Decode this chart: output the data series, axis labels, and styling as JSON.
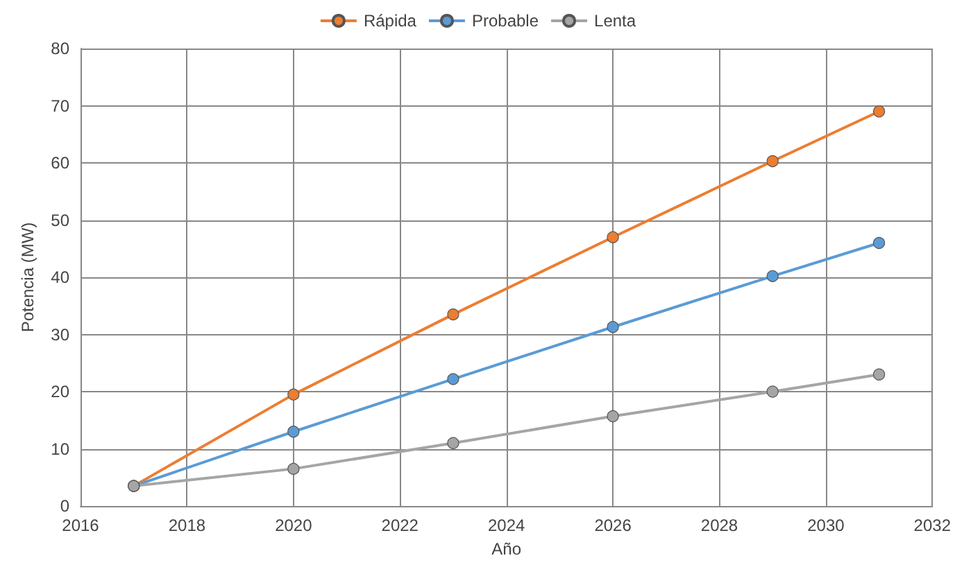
{
  "chart_data": {
    "type": "line",
    "xlabel": "Año",
    "ylabel": "Potencia (MW)",
    "x": [
      2017,
      2020,
      2023,
      2026,
      2029,
      2031
    ],
    "series": [
      {
        "name": "Rápida",
        "color": "#ed7d31",
        "values": [
          3.5,
          19.5,
          33.5,
          47,
          60.3,
          69
        ]
      },
      {
        "name": "Probable",
        "color": "#5b9bd5",
        "values": [
          3.5,
          13,
          22.2,
          31.3,
          40.2,
          46
        ]
      },
      {
        "name": "Lenta",
        "color": "#a5a5a5",
        "values": [
          3.5,
          6.5,
          11,
          15.7,
          20,
          23
        ]
      }
    ],
    "xlim": [
      2016,
      2032
    ],
    "xticks": [
      2016,
      2018,
      2020,
      2022,
      2024,
      2026,
      2028,
      2030,
      2032
    ],
    "ylim": [
      0,
      80
    ],
    "yticks": [
      0,
      10,
      20,
      30,
      40,
      50,
      60,
      70,
      80
    ],
    "grid": true,
    "legend": "top",
    "marker": "circle",
    "line_style": "solid"
  }
}
